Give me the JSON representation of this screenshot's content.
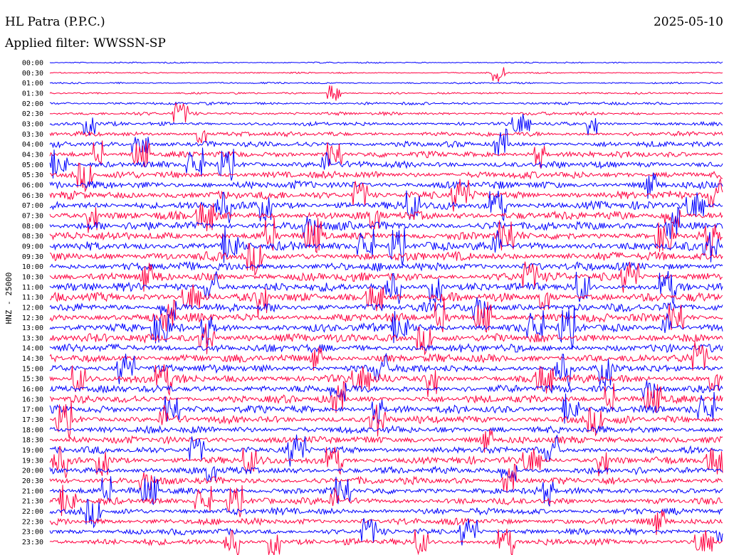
{
  "header": {
    "station": "HL Patra (P.P.C.)",
    "date": "2025-05-10",
    "filter": "Applied filter: WWSSN-SP"
  },
  "channel_label": "HNZ - 25000",
  "colors": {
    "trace_a": "#0000ff",
    "trace_b": "#ff0040",
    "background": "#ffffff",
    "text": "#000000"
  },
  "chart_data": {
    "type": "line",
    "description_type": "helicorder",
    "rows": [
      "00:00",
      "00:30",
      "01:00",
      "01:30",
      "02:00",
      "02:30",
      "03:00",
      "03:30",
      "04:00",
      "04:30",
      "05:00",
      "05:30",
      "06:00",
      "06:30",
      "07:00",
      "07:30",
      "08:00",
      "08:30",
      "09:00",
      "09:30",
      "10:00",
      "10:30",
      "11:00",
      "11:30",
      "12:00",
      "12:30",
      "13:00",
      "13:30",
      "14:00",
      "14:30",
      "15:00",
      "15:30",
      "16:00",
      "16:30",
      "17:00",
      "17:30",
      "18:00",
      "18:30",
      "19:00",
      "19:30",
      "20:00",
      "20:30",
      "21:00",
      "21:30",
      "22:00",
      "22:30",
      "23:00",
      "23:30"
    ],
    "row_colors": [
      "trace_a",
      "trace_b"
    ],
    "relative_activity": [
      0.15,
      0.15,
      0.18,
      0.2,
      0.3,
      0.35,
      0.4,
      0.5,
      0.6,
      0.65,
      0.7,
      0.75,
      0.8,
      0.85,
      0.85,
      0.9,
      0.9,
      0.9,
      0.9,
      0.9,
      0.9,
      0.9,
      0.9,
      0.9,
      0.9,
      0.9,
      0.9,
      0.9,
      0.85,
      0.85,
      0.85,
      0.85,
      0.8,
      0.8,
      0.8,
      0.8,
      0.75,
      0.75,
      0.75,
      0.75,
      0.75,
      0.75,
      0.7,
      0.7,
      0.7,
      0.7,
      0.65,
      0.65
    ],
    "grid": false,
    "legend": "none"
  }
}
